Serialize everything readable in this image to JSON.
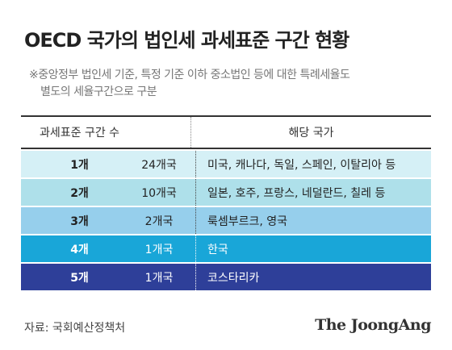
{
  "header": {
    "title": "OECD 국가의 법인세 과세표준 구간 현황",
    "note": [
      "※중앙정부 법인세 기준, 특정 기준 이하 중소법인 등에 대한 특례세율도",
      "별도의 세율구간으로 구분"
    ]
  },
  "table": {
    "columns": [
      "과세표준 구간 수",
      "해당 국가"
    ],
    "rows": [
      [
        "1개",
        "24개국",
        "미국, 캐나다, 독일, 스페인, 이탈리아 등"
      ],
      [
        "2개",
        "10개국",
        "일본, 호주, 프랑스, 네덜란드, 칠레 등"
      ],
      [
        "3개",
        "2개국",
        "룩셈부르크, 영국"
      ],
      [
        "4개",
        "1개국",
        "한국"
      ],
      [
        "5개",
        "1개국",
        "코스타리카"
      ]
    ]
  },
  "footer": {
    "source": "자료: 국회예산정책처",
    "brand": "The JoongAng"
  }
}
